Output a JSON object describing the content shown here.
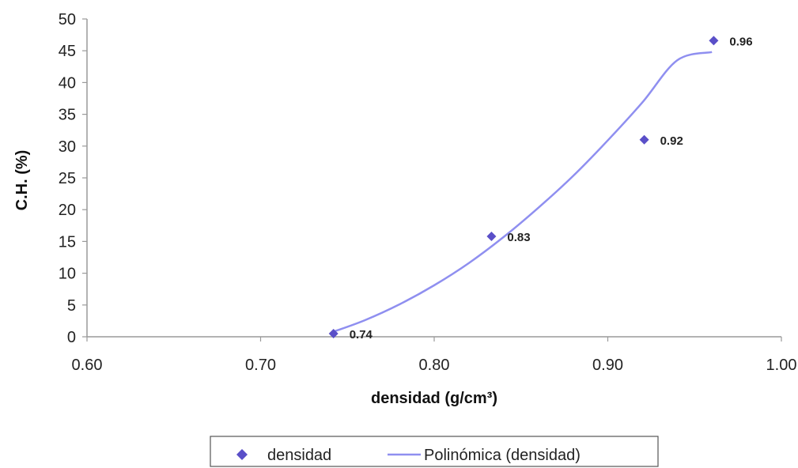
{
  "chart_data": {
    "type": "scatter",
    "title": "",
    "xlabel": "densidad (g/cm³)",
    "ylabel": "C.H. (%)",
    "xlim": [
      0.6,
      1.0
    ],
    "ylim": [
      0,
      50
    ],
    "x_ticks": [
      "0.60",
      "0.70",
      "0.80",
      "0.90",
      "1.00"
    ],
    "y_ticks": [
      "0",
      "5",
      "10",
      "15",
      "20",
      "25",
      "30",
      "35",
      "40",
      "45",
      "50"
    ],
    "grid": false,
    "legend_placement": "bottom",
    "series": [
      {
        "name": "densidad",
        "marker": "diamond",
        "color": "#5a4fc8",
        "points": [
          {
            "x": 0.742,
            "y": 0.5,
            "label": "0.74"
          },
          {
            "x": 0.833,
            "y": 15.8,
            "label": "0.83"
          },
          {
            "x": 0.921,
            "y": 31.0,
            "label": "0.92"
          },
          {
            "x": 0.961,
            "y": 46.6,
            "label": "0.96"
          }
        ]
      },
      {
        "name": "Polinómica (densidad)",
        "type": "line",
        "color": "#8f8ff0",
        "x": [
          0.742,
          0.76,
          0.78,
          0.8,
          0.82,
          0.84,
          0.86,
          0.88,
          0.9,
          0.92,
          0.94,
          0.96
        ],
        "y": [
          0.8,
          2.6,
          5.1,
          8.1,
          11.6,
          15.7,
          20.3,
          25.3,
          30.9,
          36.9,
          43.5,
          44.8
        ]
      }
    ]
  },
  "legend": {
    "items": [
      {
        "name": "densidad"
      },
      {
        "name": "Polinómica (densidad)"
      }
    ]
  }
}
